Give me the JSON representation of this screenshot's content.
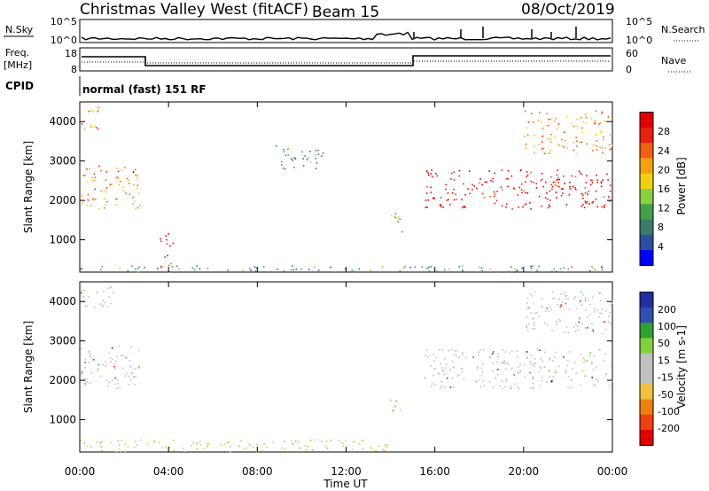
{
  "header": {
    "station": "Christmas Valley West (fitACF)",
    "beam": "Beam 15",
    "date": "08/Oct/2019"
  },
  "panels": {
    "nsky": {
      "left_label": "N.Sky",
      "left_ticks": [
        "10^5",
        "10^0"
      ],
      "right_label": "N.Search",
      "right_ticks": [
        "10^5",
        "10^0"
      ]
    },
    "freq": {
      "left_label_1": "Freq.",
      "left_label_2": "[MHz]",
      "left_ticks": [
        "18",
        "8"
      ],
      "right_label": "Nave",
      "right_ticks": [
        "60",
        "0"
      ]
    },
    "cpid": {
      "label": "CPID",
      "value": "normal (fast) 151 RF"
    }
  },
  "chart_data": [
    {
      "type": "heatmap",
      "title": "",
      "xlabel": "",
      "ylabel": "Slant Range [km]",
      "y_ticks": [
        1000,
        2000,
        3000,
        4000
      ],
      "ylim": [
        180,
        4500
      ],
      "colorbar": {
        "label": "Power [dB]",
        "ticks": [
          4,
          8,
          12,
          16,
          20,
          24,
          28
        ],
        "colors": [
          "#0000ff",
          "#2a4fa0",
          "#3c7a6a",
          "#42a04a",
          "#8ad040",
          "#f0d010",
          "#f6a010",
          "#f06010",
          "#e82010",
          "#e00000"
        ]
      },
      "regions": [
        {
          "t": [
            0.0,
            2.7
          ],
          "r": [
            1800,
            2900
          ],
          "level": 20
        },
        {
          "t": [
            0.0,
            0.9
          ],
          "r": [
            3800,
            4400
          ],
          "level": 20
        },
        {
          "t": [
            3.6,
            4.2
          ],
          "r": [
            250,
            1200
          ],
          "level": 28
        },
        {
          "t": [
            8.8,
            11.0
          ],
          "r": [
            2800,
            3400
          ],
          "level": 8
        },
        {
          "t": [
            13.8,
            14.5
          ],
          "r": [
            1200,
            1700
          ],
          "level": 12
        },
        {
          "t": [
            15.5,
            24.0
          ],
          "r": [
            1800,
            2800
          ],
          "level": 28
        },
        {
          "t": [
            20.0,
            24.0
          ],
          "r": [
            3200,
            4300
          ],
          "level": 20
        },
        {
          "t": [
            0.0,
            24.0
          ],
          "r": [
            190,
            360
          ],
          "level": 8
        }
      ]
    },
    {
      "type": "heatmap",
      "title": "",
      "xlabel": "Time UT",
      "ylabel": "Slant Range [km]",
      "y_ticks": [
        1000,
        2000,
        3000,
        4000
      ],
      "ylim": [
        180,
        4500
      ],
      "x_ticks": [
        "00:00",
        "04:00",
        "08:00",
        "12:00",
        "16:00",
        "20:00",
        "00:00"
      ],
      "colorbar": {
        "label": "Velocity [m s-1]",
        "ticks": [
          200,
          100,
          50,
          15,
          -15,
          -50,
          -100,
          -200
        ],
        "colors": [
          "#2030a0",
          "#3050b0",
          "#30a030",
          "#80d040",
          "#c0c0c0",
          "#c0c0c0",
          "#f0c040",
          "#f08010",
          "#f04010",
          "#e00000"
        ]
      },
      "regions": [
        {
          "t": [
            0.0,
            2.7
          ],
          "r": [
            1800,
            2900
          ],
          "level": 0
        },
        {
          "t": [
            0.0,
            1.5
          ],
          "r": [
            3800,
            4400
          ],
          "level": 0
        },
        {
          "t": [
            13.9,
            14.5
          ],
          "r": [
            1200,
            1700
          ],
          "level": -80
        },
        {
          "t": [
            15.5,
            24.0
          ],
          "r": [
            1800,
            2800
          ],
          "level": 0
        },
        {
          "t": [
            20.0,
            24.0
          ],
          "r": [
            3200,
            4300
          ],
          "level": 0
        },
        {
          "t": [
            0.0,
            14.0
          ],
          "r": [
            190,
            500
          ],
          "level": -40
        }
      ]
    }
  ]
}
